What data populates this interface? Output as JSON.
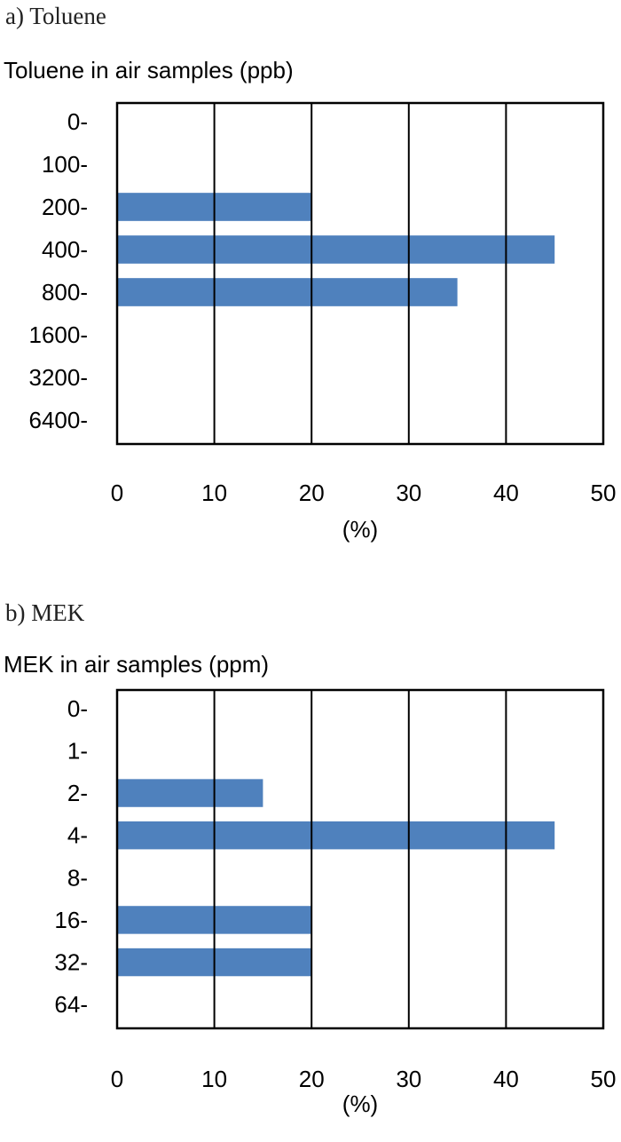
{
  "chart_data": [
    {
      "type": "bar",
      "orientation": "horizontal",
      "panel_label": "a) Toluene",
      "title": "Toluene in air samples (ppb)",
      "xlabel": "(%)",
      "categories": [
        "0-",
        "100-",
        "200-",
        "400-",
        "800-",
        "1600-",
        "3200-",
        "6400-"
      ],
      "values": [
        0,
        0,
        20,
        45,
        35,
        0,
        0,
        0
      ],
      "xlim": [
        0,
        50
      ],
      "xticks": [
        "0",
        "10",
        "20",
        "30",
        "40",
        "50"
      ],
      "grid": "vertical",
      "bar_color": "#4f81bd"
    },
    {
      "type": "bar",
      "orientation": "horizontal",
      "panel_label": "b) MEK",
      "title": "MEK in air samples (ppm)",
      "xlabel": "(%)",
      "categories": [
        "0-",
        "1-",
        "2-",
        "4-",
        "8-",
        "16-",
        "32-",
        "64-"
      ],
      "values": [
        0,
        0,
        15,
        45,
        0,
        20,
        20,
        0
      ],
      "xlim": [
        0,
        50
      ],
      "xticks": [
        "0",
        "10",
        "20",
        "30",
        "40",
        "50"
      ],
      "grid": "vertical",
      "bar_color": "#4f81bd"
    }
  ]
}
